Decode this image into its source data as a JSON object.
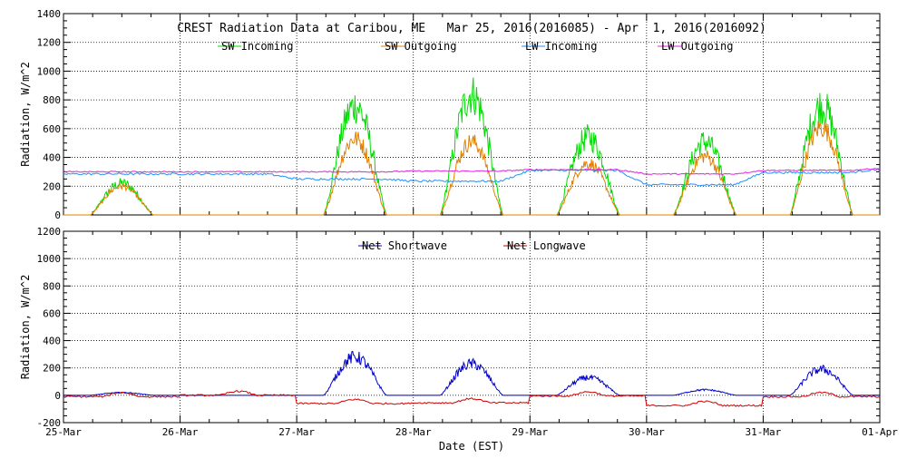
{
  "chart_data": [
    {
      "type": "line",
      "title": "CREST Radiation Data at Caribou, ME   Mar 25, 2016(2016085) - Apr  1, 2016(2016092)",
      "ylabel": "Radiation, W/m^2",
      "xlabel": "",
      "ylim": [
        0,
        1400
      ],
      "xlim": [
        "2016-03-25",
        "2016-04-01"
      ],
      "x_ticks": [
        "25-Mar",
        "26-Mar",
        "27-Mar",
        "28-Mar",
        "29-Mar",
        "30-Mar",
        "31-Mar",
        "01-Apr"
      ],
      "y_ticks": [
        "0",
        "200",
        "400",
        "600",
        "800",
        "1000",
        "1200",
        "1400"
      ],
      "grid": true,
      "series": [
        {
          "name": "SW Incoming",
          "color": "#00dd00",
          "daily_peaks": [
            220,
            0,
            760,
            840,
            540,
            510,
            760,
            140
          ]
        },
        {
          "name": "SW Outgoing",
          "color": "#e08000",
          "daily_peaks": [
            200,
            0,
            530,
            510,
            360,
            410,
            610,
            120
          ]
        },
        {
          "name": "LW Incoming",
          "color": "#1e90ff",
          "daily_means": [
            285,
            285,
            250,
            235,
            310,
            210,
            295,
            320
          ]
        },
        {
          "name": "LW Outgoing",
          "color": "#e020e0",
          "daily_means": [
            300,
            300,
            300,
            305,
            315,
            285,
            310,
            325
          ]
        }
      ]
    },
    {
      "type": "line",
      "title": "",
      "ylabel": "Radiation, W/m^2",
      "xlabel": "Date (EST)",
      "ylim": [
        -200,
        1200
      ],
      "xlim": [
        "2016-03-25",
        "2016-04-01"
      ],
      "x_ticks": [
        "25-Mar",
        "26-Mar",
        "27-Mar",
        "28-Mar",
        "29-Mar",
        "30-Mar",
        "31-Mar",
        "01-Apr"
      ],
      "y_ticks": [
        "-200",
        "0",
        "200",
        "400",
        "600",
        "800",
        "1000",
        "1200"
      ],
      "grid": true,
      "series": [
        {
          "name": "Net Shortwave",
          "color": "#0000cc",
          "daily_peaks": [
            20,
            0,
            280,
            230,
            130,
            40,
            190,
            15
          ]
        },
        {
          "name": "Net Longwave",
          "color": "#cc0000",
          "daily_means": [
            -10,
            0,
            -60,
            -55,
            -5,
            -75,
            -10,
            0
          ]
        }
      ]
    }
  ]
}
